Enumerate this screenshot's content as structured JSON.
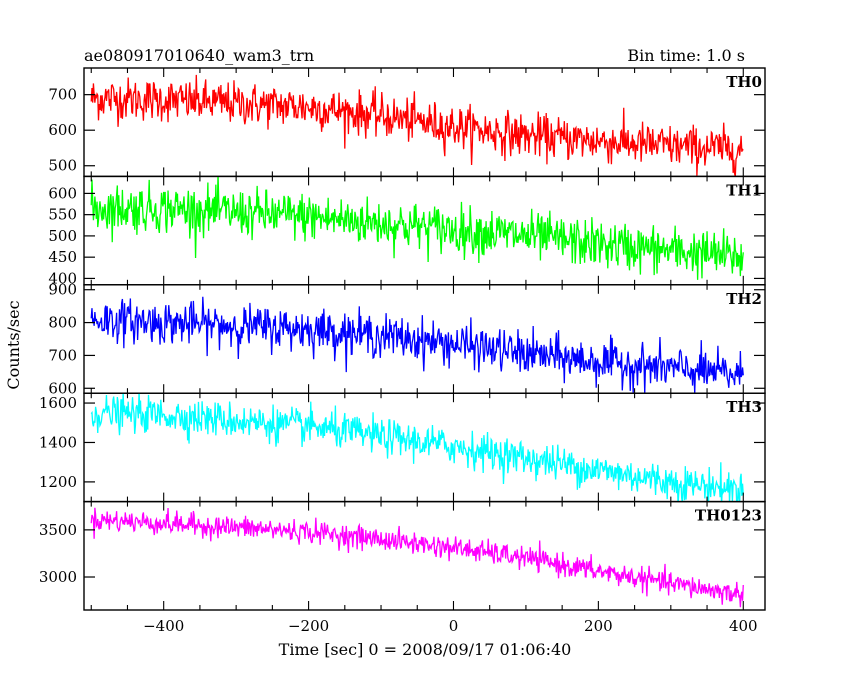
{
  "header": {
    "left_title": "ae080917010640_wam3_trn",
    "right_title": "Bin time: 1.0 s"
  },
  "chart_data": {
    "type": "line",
    "xlabel": "Time [sec] 0 = 2008/09/17 01:06:40",
    "ylabel": "Counts/sec",
    "xlim": [
      -510,
      430
    ],
    "x_ticks": [
      -400,
      -200,
      0,
      200,
      400
    ],
    "x_step_sec": 1.0,
    "x_range_data": [
      -500,
      400
    ],
    "grid": false,
    "panels": [
      {
        "name": "TH0",
        "color": "#ff0000",
        "ylim": [
          470,
          775
        ],
        "y_ticks": [
          500,
          600,
          700
        ],
        "trend": {
          "x": [
            -500,
            -400,
            -200,
            -100,
            0,
            100,
            200,
            300,
            400
          ],
          "y": [
            690,
            685,
            665,
            640,
            610,
            585,
            570,
            555,
            545
          ]
        },
        "noise_sd": 30
      },
      {
        "name": "TH1",
        "color": "#00ff00",
        "ylim": [
          385,
          640
        ],
        "y_ticks": [
          400,
          450,
          500,
          550,
          600
        ],
        "trend": {
          "x": [
            -500,
            -400,
            -200,
            -100,
            0,
            100,
            200,
            300,
            400
          ],
          "y": [
            565,
            565,
            545,
            530,
            515,
            500,
            480,
            465,
            450
          ]
        },
        "noise_sd": 28
      },
      {
        "name": "TH2",
        "color": "#0000ff",
        "ylim": [
          585,
          915
        ],
        "y_ticks": [
          600,
          700,
          800,
          900
        ],
        "trend": {
          "x": [
            -500,
            -400,
            -200,
            -100,
            0,
            100,
            200,
            300,
            400
          ],
          "y": [
            810,
            800,
            780,
            760,
            735,
            705,
            680,
            660,
            640
          ]
        },
        "noise_sd": 32
      },
      {
        "name": "TH3",
        "color": "#00ffff",
        "ylim": [
          1100,
          1650
        ],
        "y_ticks": [
          1200,
          1400,
          1600
        ],
        "trend": {
          "x": [
            -500,
            -400,
            -200,
            -100,
            0,
            100,
            200,
            300,
            400
          ],
          "y": [
            1550,
            1540,
            1480,
            1430,
            1380,
            1320,
            1260,
            1200,
            1160
          ]
        },
        "noise_sd": 45
      },
      {
        "name": "TH0123",
        "color": "#ff00ff",
        "ylim": [
          2650,
          3800
        ],
        "y_ticks": [
          3000,
          3500
        ],
        "trend": {
          "x": [
            -500,
            -400,
            -200,
            -100,
            0,
            100,
            200,
            300,
            400
          ],
          "y": [
            3610,
            3570,
            3480,
            3400,
            3310,
            3200,
            3060,
            2930,
            2810
          ]
        },
        "noise_sd": 60
      }
    ]
  }
}
